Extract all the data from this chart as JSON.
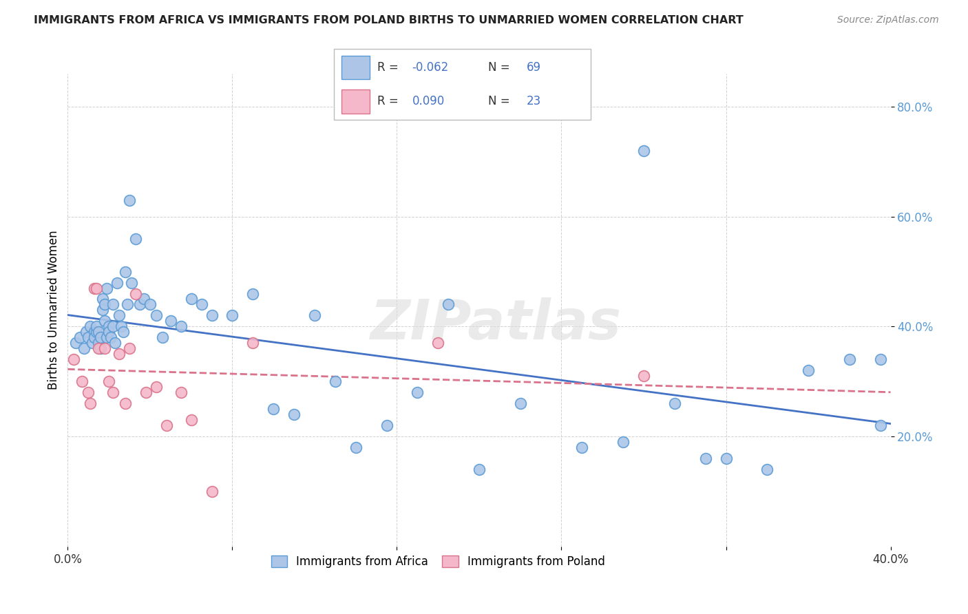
{
  "title": "IMMIGRANTS FROM AFRICA VS IMMIGRANTS FROM POLAND BIRTHS TO UNMARRIED WOMEN CORRELATION CHART",
  "source": "Source: ZipAtlas.com",
  "ylabel": "Births to Unmarried Women",
  "xlim": [
    0.0,
    0.4
  ],
  "ylim": [
    0.0,
    0.86
  ],
  "yticks": [
    0.2,
    0.4,
    0.6,
    0.8
  ],
  "ytick_labels": [
    "20.0%",
    "40.0%",
    "60.0%",
    "80.0%"
  ],
  "xticks": [
    0.0,
    0.08,
    0.16,
    0.24,
    0.32,
    0.4
  ],
  "xtick_labels": [
    "0.0%",
    "",
    "",
    "",
    "",
    "40.0%"
  ],
  "africa_color": "#adc6e8",
  "africa_edge_color": "#5b9bd5",
  "poland_color": "#f4b8ca",
  "poland_edge_color": "#d9728a",
  "africa_line_color": "#4472c4",
  "poland_line_color": "#d9728a",
  "watermark": "ZIPatlas",
  "africa_R": "-0.062",
  "africa_N": "69",
  "poland_R": "0.090",
  "poland_N": "23",
  "legend_label_africa": "Immigrants from Africa",
  "legend_label_poland": "Immigrants from Poland",
  "africa_x": [
    0.004,
    0.006,
    0.008,
    0.009,
    0.01,
    0.011,
    0.012,
    0.013,
    0.013,
    0.014,
    0.014,
    0.015,
    0.015,
    0.016,
    0.016,
    0.017,
    0.017,
    0.018,
    0.018,
    0.019,
    0.019,
    0.02,
    0.02,
    0.021,
    0.022,
    0.022,
    0.023,
    0.024,
    0.025,
    0.026,
    0.027,
    0.028,
    0.029,
    0.03,
    0.031,
    0.033,
    0.035,
    0.037,
    0.04,
    0.043,
    0.046,
    0.05,
    0.055,
    0.06,
    0.065,
    0.07,
    0.08,
    0.09,
    0.1,
    0.11,
    0.12,
    0.13,
    0.14,
    0.155,
    0.17,
    0.185,
    0.2,
    0.22,
    0.25,
    0.28,
    0.295,
    0.32,
    0.34,
    0.36,
    0.38,
    0.395,
    0.395,
    0.27,
    0.31
  ],
  "africa_y": [
    0.37,
    0.38,
    0.36,
    0.39,
    0.38,
    0.4,
    0.37,
    0.39,
    0.38,
    0.39,
    0.4,
    0.37,
    0.39,
    0.36,
    0.38,
    0.43,
    0.45,
    0.44,
    0.41,
    0.47,
    0.38,
    0.4,
    0.39,
    0.38,
    0.44,
    0.4,
    0.37,
    0.48,
    0.42,
    0.4,
    0.39,
    0.5,
    0.44,
    0.63,
    0.48,
    0.56,
    0.44,
    0.45,
    0.44,
    0.42,
    0.38,
    0.41,
    0.4,
    0.45,
    0.44,
    0.42,
    0.42,
    0.46,
    0.25,
    0.24,
    0.42,
    0.3,
    0.18,
    0.22,
    0.28,
    0.44,
    0.14,
    0.26,
    0.18,
    0.72,
    0.26,
    0.16,
    0.14,
    0.32,
    0.34,
    0.34,
    0.22,
    0.19,
    0.16
  ],
  "poland_x": [
    0.003,
    0.007,
    0.01,
    0.011,
    0.013,
    0.014,
    0.015,
    0.018,
    0.02,
    0.022,
    0.025,
    0.028,
    0.03,
    0.033,
    0.038,
    0.043,
    0.048,
    0.055,
    0.06,
    0.07,
    0.09,
    0.18,
    0.28
  ],
  "poland_y": [
    0.34,
    0.3,
    0.28,
    0.26,
    0.47,
    0.47,
    0.36,
    0.36,
    0.3,
    0.28,
    0.35,
    0.26,
    0.36,
    0.46,
    0.28,
    0.29,
    0.22,
    0.28,
    0.23,
    0.1,
    0.37,
    0.37,
    0.31
  ]
}
